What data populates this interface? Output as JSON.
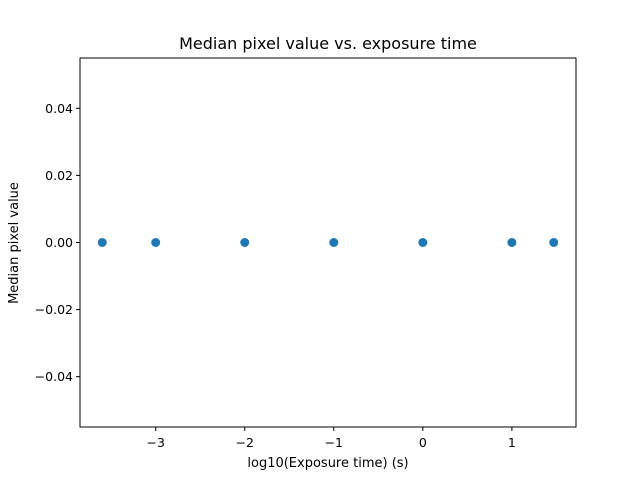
{
  "chart_data": {
    "type": "scatter",
    "title": "Median pixel value vs. exposure time",
    "xlabel": "log10(Exposure time) (s)",
    "ylabel": "Median pixel value",
    "x": [
      -3.6,
      -3.0,
      -2.0,
      -1.0,
      0.0,
      1.0,
      1.47
    ],
    "y": [
      0,
      0,
      0,
      0,
      0,
      0,
      0
    ],
    "xlim": [
      -3.85,
      1.72
    ],
    "ylim": [
      -0.055,
      0.055
    ],
    "xticks": [
      -3,
      -2,
      -1,
      0,
      1
    ],
    "xtick_labels": [
      "−3",
      "−2",
      "−1",
      "0",
      "1"
    ],
    "yticks": [
      0.04,
      0.02,
      0.0,
      -0.02,
      -0.04
    ],
    "ytick_labels": [
      "0.04",
      "0.02",
      "0.00",
      "−0.02",
      "−0.04"
    ],
    "grid": false,
    "marker_color": "#1f77b4"
  }
}
